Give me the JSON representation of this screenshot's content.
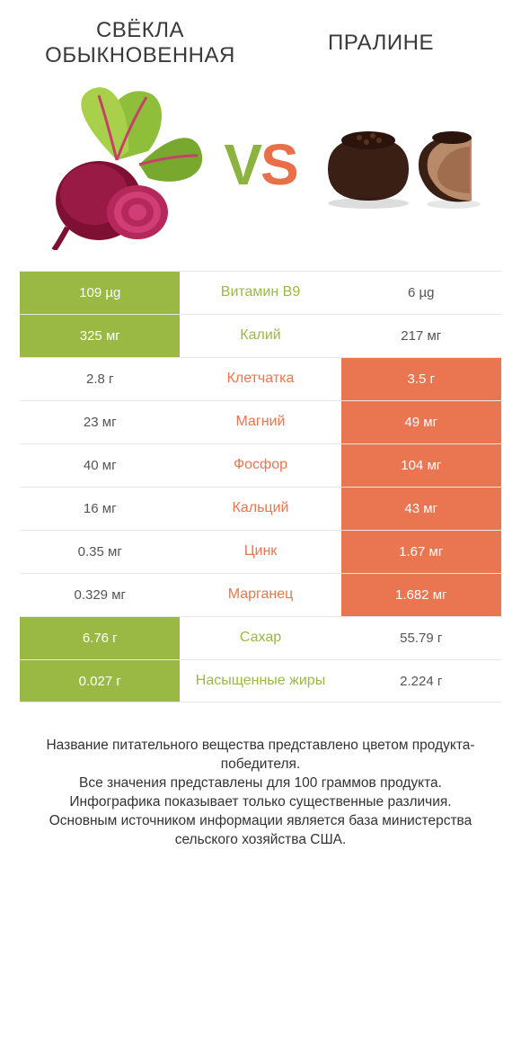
{
  "colors": {
    "green": "#99b944",
    "orange": "#ea7551",
    "row_border": "#e7e7e7",
    "title_text": "#3a3a3a",
    "footer_text": "#333333",
    "background": "#ffffff"
  },
  "left": {
    "title": "СВЁКЛА ОБЫКНОВЕННАЯ",
    "product": "beet"
  },
  "right": {
    "title": "ПРАЛИНЕ",
    "product": "praline"
  },
  "vs": {
    "v": "V",
    "s": "S"
  },
  "rows": [
    {
      "nutrient": "Витамин B9",
      "left": "109 µg",
      "right": "6 µg",
      "winner": "left"
    },
    {
      "nutrient": "Калий",
      "left": "325 мг",
      "right": "217 мг",
      "winner": "left"
    },
    {
      "nutrient": "Клетчатка",
      "left": "2.8 г",
      "right": "3.5 г",
      "winner": "right"
    },
    {
      "nutrient": "Магний",
      "left": "23 мг",
      "right": "49 мг",
      "winner": "right"
    },
    {
      "nutrient": "Фосфор",
      "left": "40 мг",
      "right": "104 мг",
      "winner": "right"
    },
    {
      "nutrient": "Кальций",
      "left": "16 мг",
      "right": "43 мг",
      "winner": "right"
    },
    {
      "nutrient": "Цинк",
      "left": "0.35 мг",
      "right": "1.67 мг",
      "winner": "right"
    },
    {
      "nutrient": "Марганец",
      "left": "0.329 мг",
      "right": "1.682 мг",
      "winner": "right"
    },
    {
      "nutrient": "Сахар",
      "left": "6.76 г",
      "right": "55.79 г",
      "winner": "left"
    },
    {
      "nutrient": "Насыщенные жиры",
      "left": "0.027 г",
      "right": "2.224 г",
      "winner": "left"
    }
  ],
  "footer": "Название питательного вещества представлено цветом продукта-победителя.\nВсе значения представлены для 100 граммов продукта.\nИнфографика показывает только существенные различия.\nОсновным источником информации является база министерства сельского хозяйства США."
}
